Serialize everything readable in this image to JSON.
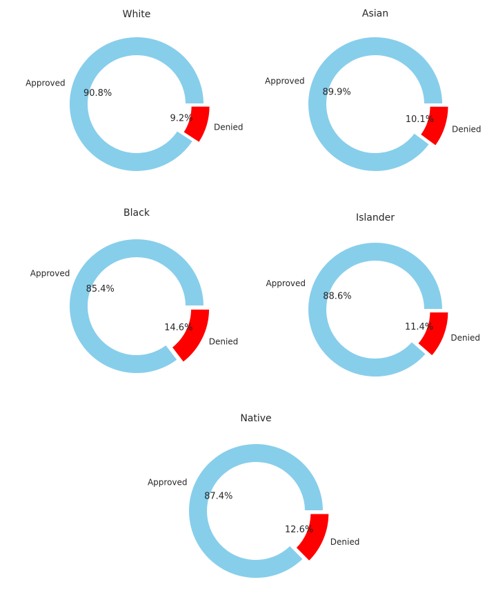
{
  "chart_data": [
    {
      "type": "pie",
      "title": "White",
      "categories": [
        "Approved",
        "Denied"
      ],
      "values": [
        90.8,
        9.2
      ],
      "value_labels": [
        "90.8%",
        "9.2%"
      ],
      "colors": [
        "#87ceeb",
        "#ff0000"
      ]
    },
    {
      "type": "pie",
      "title": "Asian",
      "categories": [
        "Approved",
        "Denied"
      ],
      "values": [
        89.9,
        10.1
      ],
      "value_labels": [
        "89.9%",
        "10.1%"
      ],
      "colors": [
        "#87ceeb",
        "#ff0000"
      ]
    },
    {
      "type": "pie",
      "title": "Black",
      "categories": [
        "Approved",
        "Denied"
      ],
      "values": [
        85.4,
        14.6
      ],
      "value_labels": [
        "85.4%",
        "14.6%"
      ],
      "colors": [
        "#87ceeb",
        "#ff0000"
      ]
    },
    {
      "type": "pie",
      "title": "Islander",
      "categories": [
        "Approved",
        "Denied"
      ],
      "values": [
        88.6,
        11.4
      ],
      "value_labels": [
        "88.6%",
        "11.4%"
      ],
      "colors": [
        "#87ceeb",
        "#ff0000"
      ]
    },
    {
      "type": "pie",
      "title": "Native",
      "categories": [
        "Approved",
        "Denied"
      ],
      "values": [
        87.4,
        12.6
      ],
      "value_labels": [
        "87.4%",
        "12.6%"
      ],
      "colors": [
        "#87ceeb",
        "#ff0000"
      ]
    }
  ]
}
